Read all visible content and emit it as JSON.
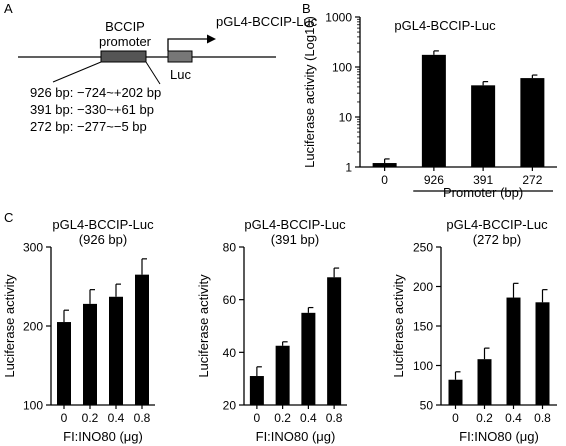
{
  "panels": {
    "a": {
      "letter": "A",
      "construct_label": "pGL4-BCCIP-Luc",
      "promoter_label_line1": "BCCIP",
      "promoter_label_line2": "promoter",
      "luc_label": "Luc",
      "fragments": [
        "926 bp: −724~+202 bp",
        "391 bp: −330~+61 bp",
        "272 bp: −277~−5 bp"
      ]
    },
    "b": {
      "letter": "B"
    },
    "c": {
      "letter": "C"
    }
  },
  "chart_data": [
    {
      "id": "b",
      "type": "bar",
      "title": "pGL4-BCCIP-Luc",
      "subtitle": "",
      "ylabel": "Luciferase activity (Log10)",
      "xlabel": "Promoter (bp)",
      "yscale": "log",
      "ylim": [
        1,
        1000
      ],
      "yticks": [
        1,
        10,
        100,
        1000
      ],
      "categories": [
        "0",
        "926",
        "391",
        "272"
      ],
      "values": [
        1.2,
        175,
        43,
        60
      ],
      "errors": [
        0.25,
        35,
        8,
        9
      ],
      "bar_color": "#000000"
    },
    {
      "id": "c1",
      "type": "bar",
      "title": "pGL4-BCCIP-Luc",
      "subtitle": "(926 bp)",
      "ylabel": "Luciferase activity",
      "xlabel": "FI:INO80 (μg)",
      "yscale": "linear",
      "ylim": [
        100,
        300
      ],
      "yticks": [
        100,
        200,
        300
      ],
      "categories": [
        "0",
        "0.2",
        "0.4",
        "0.8"
      ],
      "values": [
        205,
        228,
        237,
        265
      ],
      "errors": [
        15,
        18,
        16,
        20
      ],
      "bar_color": "#000000"
    },
    {
      "id": "c2",
      "type": "bar",
      "title": "pGL4-BCCIP-Luc",
      "subtitle": "(391 bp)",
      "ylabel": "Luciferase activity",
      "xlabel": "FI:INO80 (μg)",
      "yscale": "linear",
      "ylim": [
        20,
        80
      ],
      "yticks": [
        20,
        40,
        60,
        80
      ],
      "categories": [
        "0",
        "0.2",
        "0.4",
        "0.8"
      ],
      "values": [
        31,
        42.5,
        55,
        68.5
      ],
      "errors": [
        3.5,
        1.5,
        2,
        3.5
      ],
      "bar_color": "#000000"
    },
    {
      "id": "c3",
      "type": "bar",
      "title": "pGL4-BCCIP-Luc",
      "subtitle": "(272 bp)",
      "ylabel": "Luciferase activity",
      "xlabel": "FI:INO80 (μg)",
      "yscale": "linear",
      "ylim": [
        50,
        250
      ],
      "yticks": [
        50,
        100,
        150,
        200,
        250
      ],
      "categories": [
        "0",
        "0.2",
        "0.4",
        "0.8"
      ],
      "values": [
        82,
        108,
        186,
        180
      ],
      "errors": [
        10,
        14,
        18,
        16
      ],
      "bar_color": "#000000"
    }
  ]
}
